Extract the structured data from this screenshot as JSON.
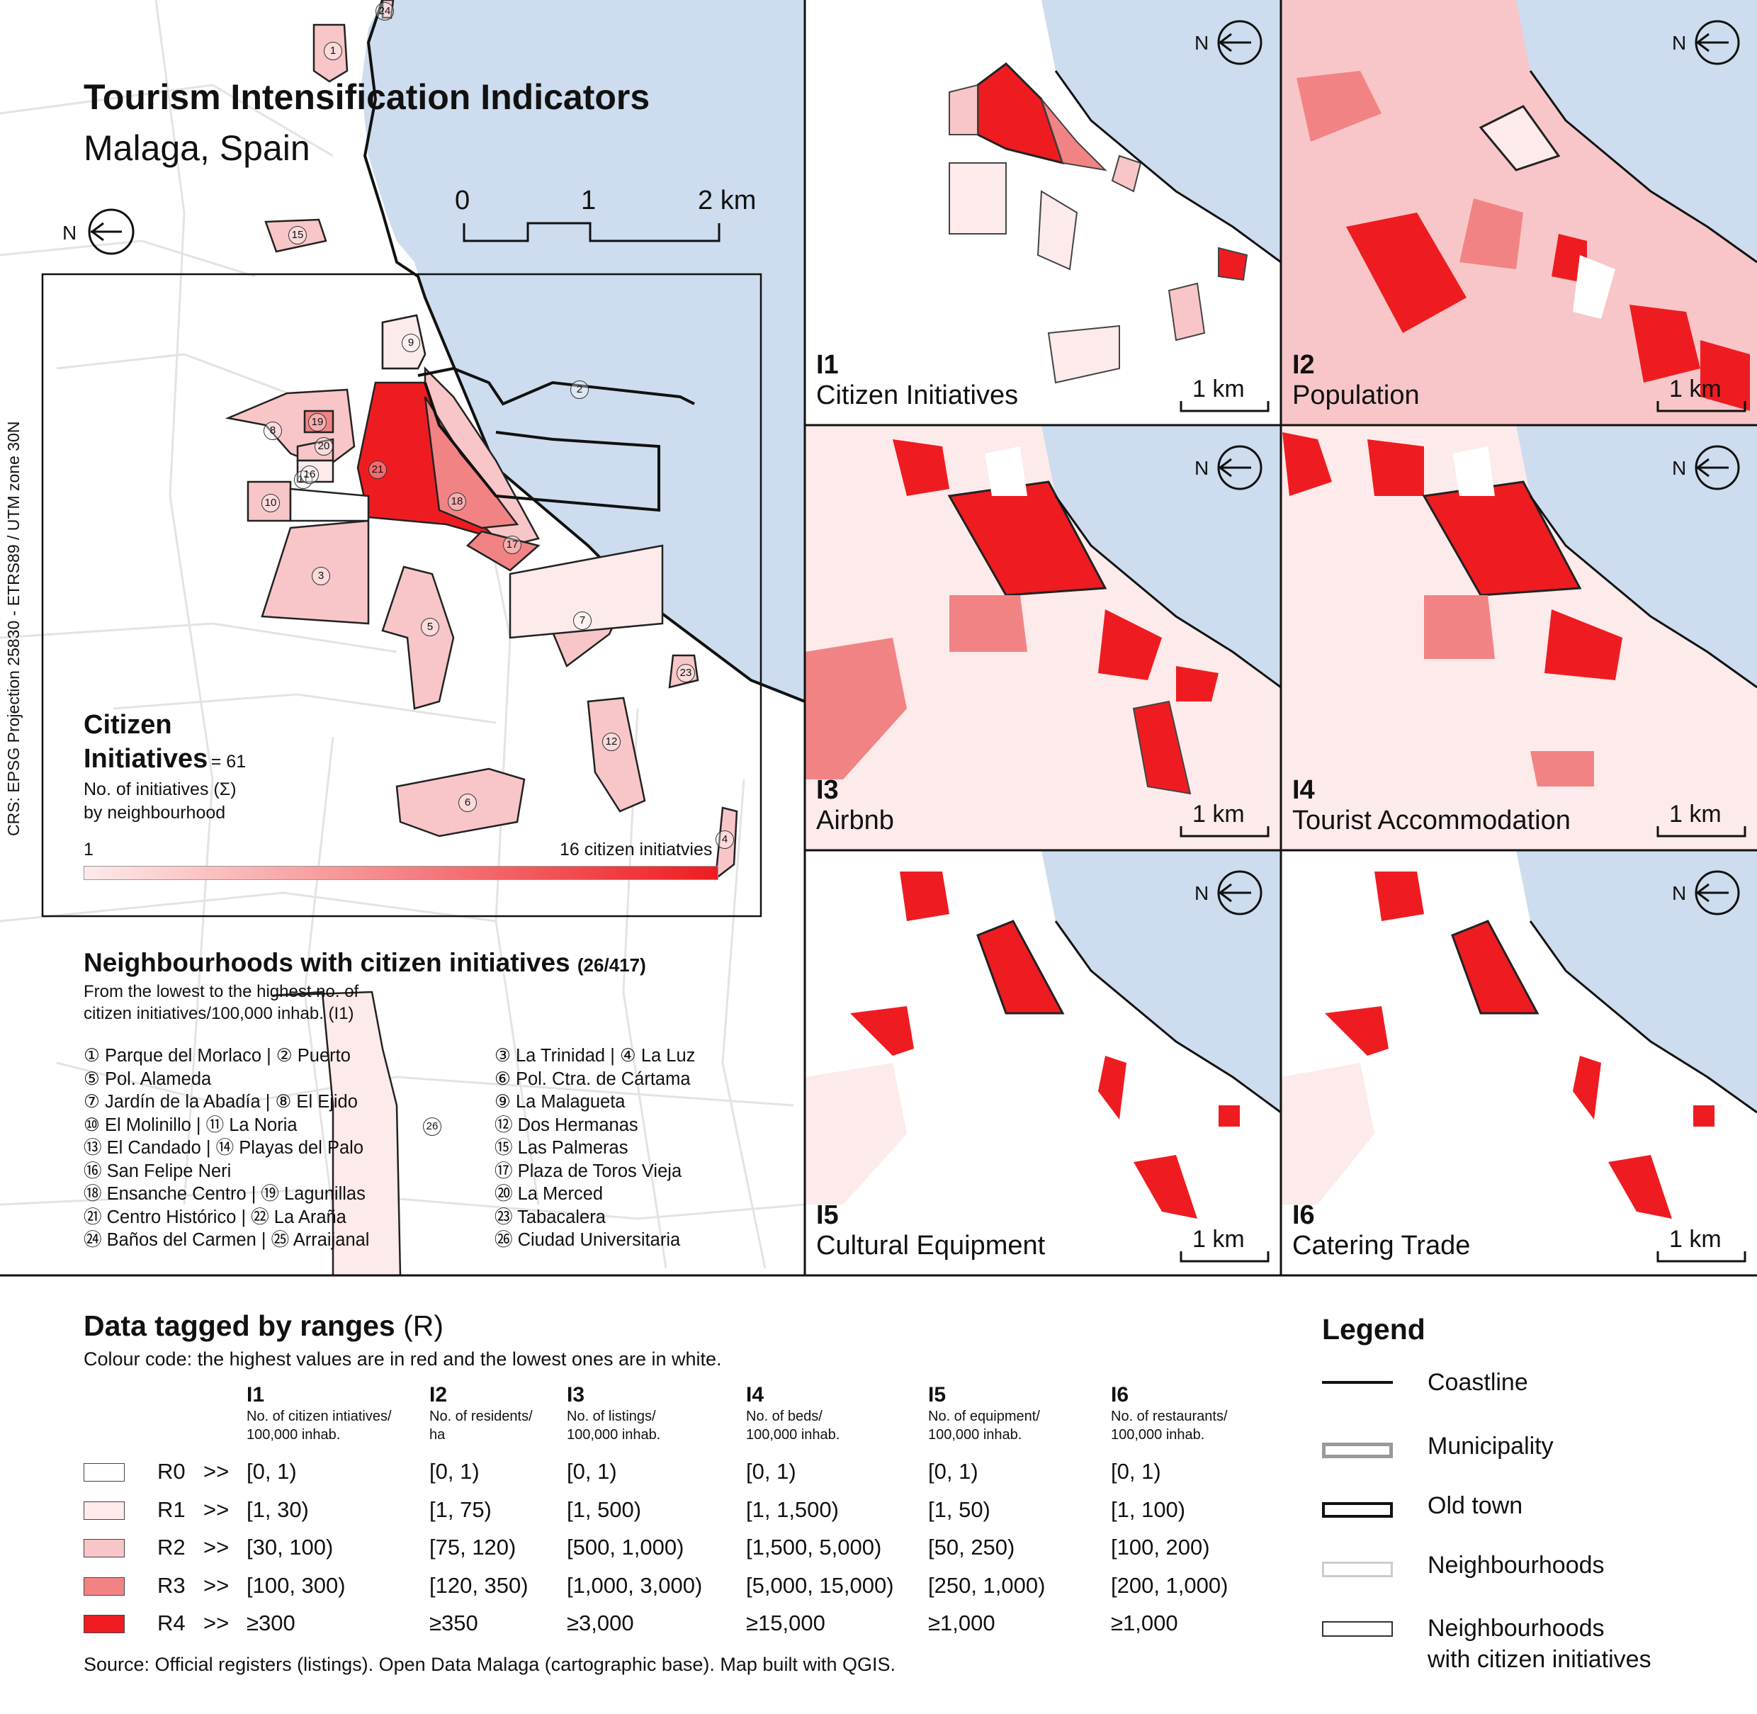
{
  "map": {
    "title": "Tourism Intensification Indicators",
    "subtitle": "Malaga, Spain",
    "crs": "CRS: EPSG Projection 25830 - ETRS89 / UTM zone 30N",
    "north": "N",
    "scale": {
      "t0": "0",
      "t1": "1",
      "t2": "2 km"
    },
    "colors": {
      "sea": "#cddcee",
      "r1": "#fdeaea",
      "r2": "#f8c6c8",
      "r3": "#f28384",
      "r4": "#ee1c20",
      "line": "#dddddd"
    },
    "neighbourhood_numbers": [
      "1",
      "2",
      "3",
      "4",
      "5",
      "6",
      "7",
      "8",
      "9",
      "10",
      "11",
      "12",
      "13",
      "14",
      "15",
      "16",
      "17",
      "18",
      "19",
      "20",
      "21",
      "22",
      "23",
      "24",
      "25",
      "26"
    ]
  },
  "citizen": {
    "title_line1": "Citizen",
    "title_line2": "Initiatives",
    "total": "= 61",
    "desc1": "No. of initiatives (Σ)",
    "desc2": "by neighbourhood",
    "min": "1",
    "max": "16 citizen initiatvies"
  },
  "neighbourhoods": {
    "title": "Neighbourhoods with citizen initiatives",
    "count": "(26/417)",
    "sub1": "From the lowest to the highest no. of",
    "sub2": "citizen initiatives/100,000 inhab. (I1)",
    "left": [
      "① Parque del Morlaco | ② Puerto",
      "⑤ Pol. Alameda",
      "⑦ Jardín de la Abadía | ⑧ El Ejido",
      "⑩ El Molinillo | ⑪ La Noria",
      "⑬ El Candado | ⑭ Playas del Palo",
      "⑯ San Felipe Neri",
      "⑱ Ensanche Centro | ⑲ Lagunillas",
      "㉑ Centro Histórico | ㉒ La Araña",
      "㉔ Baños del Carmen | ㉕ Arraijanal"
    ],
    "right": [
      "③ La Trinidad | ④ La Luz",
      "⑥ Pol. Ctra. de Cártama",
      "⑨ La Malagueta",
      "⑫ Dos Hermanas",
      "⑮ Las Palmeras",
      "⑰ Plaza de Toros Vieja",
      "⑳ La Merced",
      "㉓ Tabacalera",
      "㉖ Ciudad Universitaria"
    ]
  },
  "panels": [
    {
      "id": "I1",
      "name": "Citizen Initiatives",
      "km": "1 km"
    },
    {
      "id": "I2",
      "name": "Population",
      "km": "1 km"
    },
    {
      "id": "I3",
      "name": "Airbnb",
      "km": "1 km"
    },
    {
      "id": "I4",
      "name": "Tourist Accommodation",
      "km": "1 km"
    },
    {
      "id": "I5",
      "name": "Cultural Equipment",
      "km": "1 km"
    },
    {
      "id": "I6",
      "name": "Catering Trade",
      "km": "1 km"
    }
  ],
  "ranges": {
    "title": "Data tagged by ranges",
    "title_suffix": "(R)",
    "subtitle": "Colour code: the highest values are in red and the lowest ones are in white.",
    "columns": [
      {
        "id": "I1",
        "desc1": "No. of citizen intiatives/",
        "desc2": "100,000 inhab."
      },
      {
        "id": "I2",
        "desc1": "No. of residents/",
        "desc2": "ha"
      },
      {
        "id": "I3",
        "desc1": "No. of listings/",
        "desc2": "100,000 inhab."
      },
      {
        "id": "I4",
        "desc1": "No. of beds/",
        "desc2": "100,000 inhab."
      },
      {
        "id": "I5",
        "desc1": "No. of equipment/",
        "desc2": "100,000 inhab."
      },
      {
        "id": "I6",
        "desc1": "No. of restaurants/",
        "desc2": "100,000 inhab."
      }
    ],
    "rows": [
      {
        "label": "R0",
        "arrow": ">>",
        "color": "#ffffff",
        "values": [
          "[0, 1)",
          "[0, 1)",
          "[0, 1)",
          "[0, 1)",
          "[0, 1)",
          "[0, 1)"
        ]
      },
      {
        "label": "R1",
        "arrow": ">>",
        "color": "#fdeaea",
        "values": [
          "[1, 30)",
          "[1, 75)",
          "[1, 500)",
          "[1, 1,500)",
          "[1, 50)",
          "[1, 100)"
        ]
      },
      {
        "label": "R2",
        "arrow": ">>",
        "color": "#f8c6c8",
        "values": [
          "[30, 100)",
          "[75, 120)",
          "[500, 1,000)",
          "[1,500, 5,000)",
          "[50, 250)",
          "[100, 200)"
        ]
      },
      {
        "label": "R3",
        "arrow": ">>",
        "color": "#f28384",
        "values": [
          "[100, 300)",
          "[120, 350)",
          "[1,000, 3,000)",
          "[5,000, 15,000)",
          "[250, 1,000)",
          "[200, 1,000)"
        ]
      },
      {
        "label": "R4",
        "arrow": ">>",
        "color": "#ee1c20",
        "values": [
          "≥300",
          "≥350",
          "≥3,000",
          "≥15,000",
          "≥1,000",
          "≥1,000"
        ]
      }
    ],
    "source": "Source: Official registers (listings). Open Data Malaga (cartographic base). Map built with QGIS."
  },
  "legend": {
    "title": "Legend",
    "items": [
      "Coastline",
      "Municipality",
      "Old town",
      "Neighbourhoods",
      "Neighbourhoods",
      "with citizen initiatives"
    ]
  }
}
